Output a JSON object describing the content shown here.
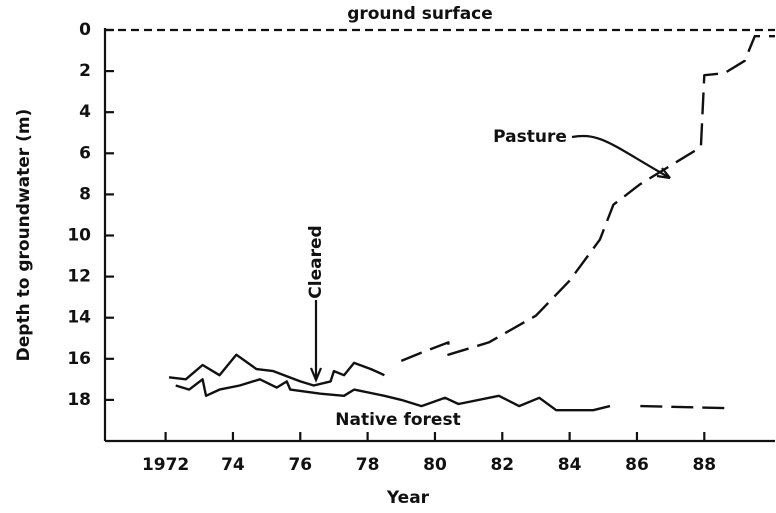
{
  "chart_data": {
    "type": "line",
    "title": "ground surface",
    "xlabel": "Year",
    "ylabel": "Depth to groundwater (m)",
    "annotations": [
      "Pasture",
      "Cleared",
      "Native forest"
    ],
    "xlim": [
      1970.2,
      1990.1
    ],
    "ylim": [
      0,
      20
    ],
    "y_inverted": true,
    "xticks": [
      1972,
      {
        "value": 1974,
        "label": "74"
      },
      {
        "value": 1976,
        "label": "76"
      },
      {
        "value": 1978,
        "label": "78"
      },
      {
        "value": 1980,
        "label": "80"
      },
      {
        "value": 1982,
        "label": "82"
      },
      {
        "value": 1984,
        "label": "84"
      },
      {
        "value": 1986,
        "label": "86"
      },
      {
        "value": 1988,
        "label": "88"
      }
    ],
    "yticks": [
      0,
      2,
      4,
      6,
      8,
      10,
      12,
      14,
      16,
      18
    ],
    "series": [
      {
        "name": "Pasture",
        "color": "#111111",
        "x": [
          1972.1,
          1972.6,
          1973.1,
          1973.6,
          1974.1,
          1974.7,
          1975.2,
          1976.0,
          1976.4,
          1976.9,
          1977.0,
          1977.3,
          1977.6,
          1978.1,
          1978.5,
          1979.0,
          1979.6,
          1980.4,
          1980.4,
          1981.6,
          1983.0,
          1984.0,
          1984.9,
          1985.3,
          1986.1,
          1987.0,
          1987.9,
          1988.0,
          1988.6,
          1989.2,
          1989.5,
          1990.1
        ],
        "values": [
          16.9,
          17.0,
          16.3,
          16.8,
          15.8,
          16.5,
          16.6,
          17.1,
          17.3,
          17.1,
          16.6,
          16.8,
          16.2,
          16.5,
          16.8,
          16.1,
          15.7,
          15.2,
          15.8,
          15.2,
          13.9,
          12.2,
          10.2,
          8.5,
          7.5,
          6.6,
          5.7,
          2.2,
          2.1,
          1.5,
          0.3,
          0.3
        ]
      },
      {
        "name": "Native forest",
        "color": "#111111",
        "x": [
          1972.3,
          1972.7,
          1973.1,
          1973.2,
          1973.6,
          1974.2,
          1974.8,
          1975.3,
          1975.6,
          1975.7,
          1976.6,
          1977.3,
          1977.6,
          1978.5,
          1979.0,
          1979.6,
          1980.3,
          1980.7,
          1981.9,
          1982.5,
          1983.1,
          1983.6,
          1984.7,
          1985.2,
          1986.1,
          1988.7
        ],
        "values": [
          17.3,
          17.5,
          17.0,
          17.8,
          17.5,
          17.3,
          17.0,
          17.4,
          17.1,
          17.5,
          17.7,
          17.8,
          17.5,
          17.8,
          18.0,
          18.3,
          17.9,
          18.2,
          17.8,
          18.3,
          17.9,
          18.5,
          18.5,
          18.3,
          18.3,
          18.4
        ]
      }
    ]
  }
}
